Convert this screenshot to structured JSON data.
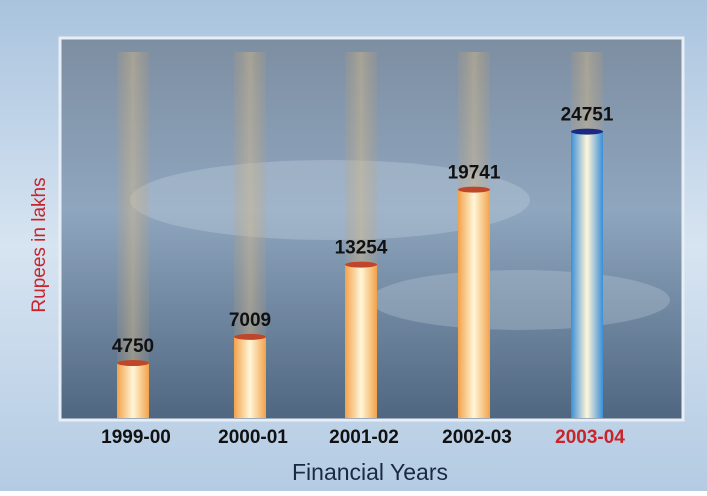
{
  "chart_data": {
    "type": "bar",
    "categories": [
      "1999-00",
      "2000-01",
      "2001-02",
      "2002-03",
      "2003-04"
    ],
    "values": [
      4750,
      7009,
      13254,
      19741,
      24751
    ],
    "colors": [
      "#f2a24a",
      "#f2a24a",
      "#f2a24a",
      "#f2a24a",
      "#3c8fd8"
    ],
    "label_colors": [
      "#111111",
      "#111111",
      "#111111",
      "#111111",
      "#c8242b"
    ],
    "y_label": "Rupees in lakhs",
    "x_label": "Financial Years"
  }
}
